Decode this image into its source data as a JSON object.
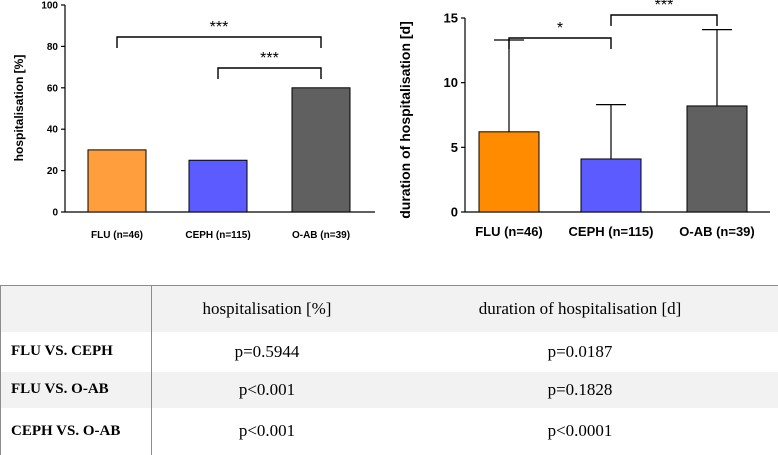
{
  "chart_data": [
    {
      "type": "bar",
      "categories": [
        "FLU (n=46)",
        "CEPH (n=115)",
        "O-AB (n=39)"
      ],
      "values": [
        30,
        25,
        60
      ],
      "colors": [
        "#ff9e3d",
        "#5b5bff",
        "#606060"
      ],
      "xlabel": "",
      "ylabel": "hospitalisation [%]",
      "ylim": [
        0,
        100
      ],
      "yticks": [
        0,
        20,
        40,
        60,
        80,
        100
      ],
      "significance": [
        {
          "from": 0,
          "to": 2,
          "label": "***"
        },
        {
          "from": 1,
          "to": 2,
          "label": "***"
        }
      ]
    },
    {
      "type": "bar",
      "categories": [
        "FLU (n=46)",
        "CEPH (n=115)",
        "O-AB (n=39)"
      ],
      "values": [
        6.2,
        4.1,
        8.2
      ],
      "error_upper": [
        13.3,
        8.3,
        14.1
      ],
      "colors": [
        "#ff8c00",
        "#5b5bff",
        "#606060"
      ],
      "xlabel": "",
      "ylabel": "duration of hospitalisation [d]",
      "ylim": [
        0,
        15
      ],
      "yticks": [
        0,
        5,
        10,
        15
      ],
      "significance": [
        {
          "from": 0,
          "to": 1,
          "label": "*"
        },
        {
          "from": 1,
          "to": 2,
          "label": "***"
        }
      ]
    }
  ],
  "table": {
    "headers": [
      "",
      "hospitalisation [%]",
      "duration of hospitalisation [d]"
    ],
    "rows": [
      {
        "label": "FLU VS. CEPH",
        "c1": "p=0.5944",
        "c2": "p=0.0187"
      },
      {
        "label": "FLU VS. O-AB",
        "c1": "p<0.001",
        "c2": "p=0.1828"
      },
      {
        "label": "CEPH VS. O-AB",
        "c1": "p<0.001",
        "c2": "p<0.0001"
      }
    ]
  }
}
